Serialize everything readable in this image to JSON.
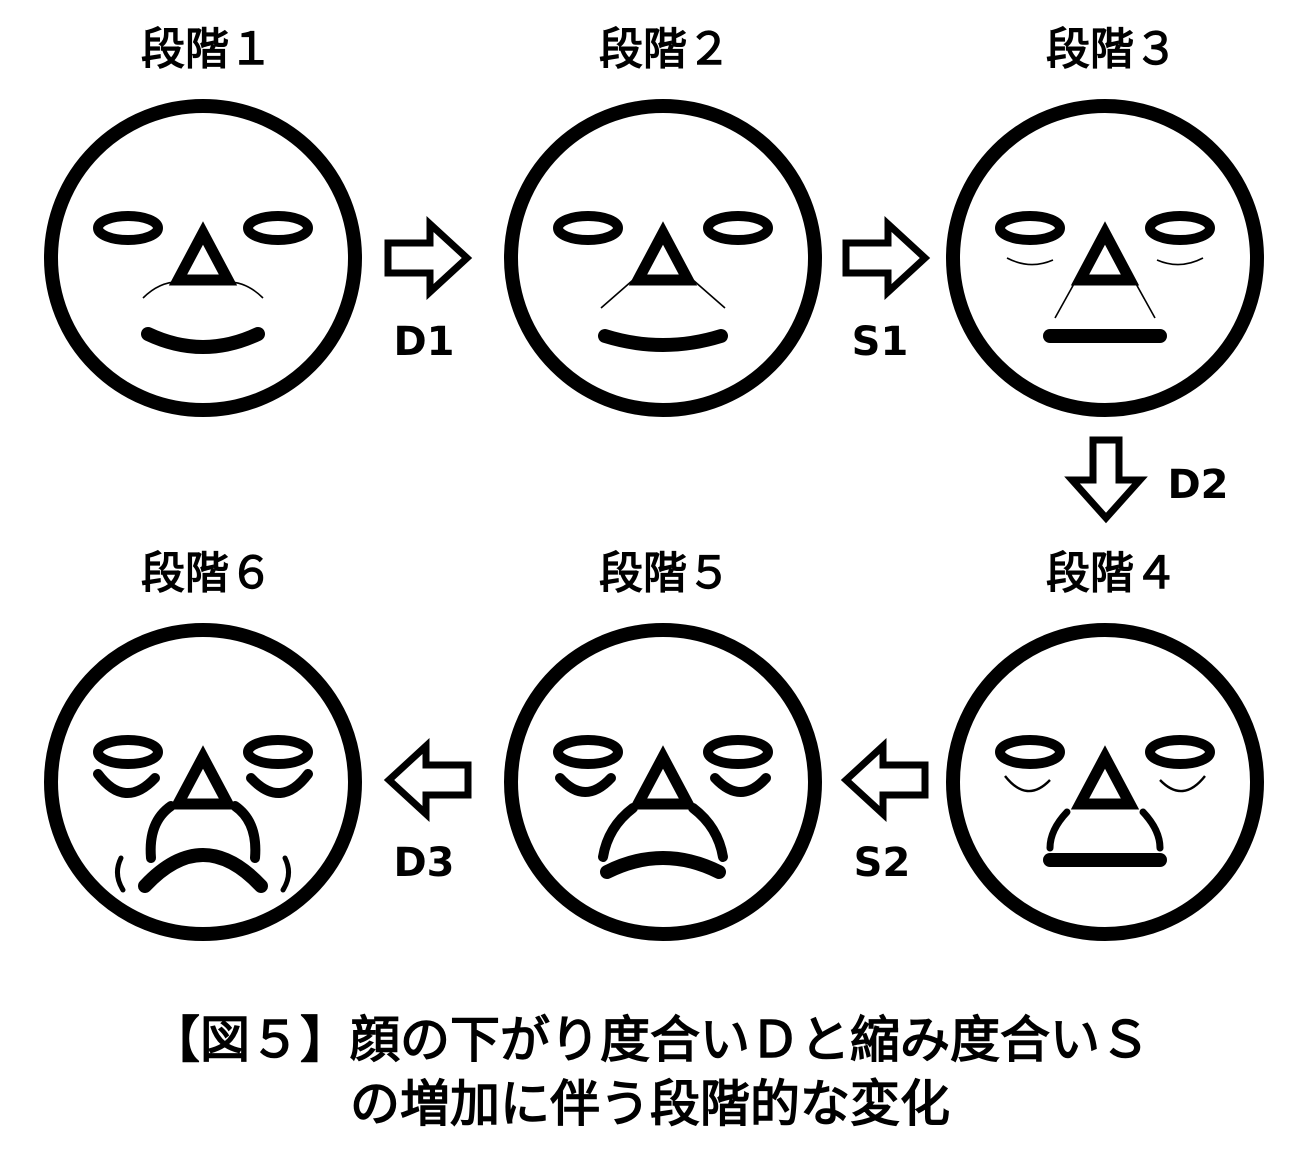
{
  "stages": [
    {
      "label": "段階１"
    },
    {
      "label": "段階２"
    },
    {
      "label": "段階３"
    },
    {
      "label": "段階４"
    },
    {
      "label": "段階５"
    },
    {
      "label": "段階６"
    }
  ],
  "arrows": [
    {
      "label": "D1",
      "from": "段階１",
      "to": "段階２"
    },
    {
      "label": "S1",
      "from": "段階２",
      "to": "段階３"
    },
    {
      "label": "D2",
      "from": "段階３",
      "to": "段階４"
    },
    {
      "label": "S2",
      "from": "段階４",
      "to": "段階５"
    },
    {
      "label": "D3",
      "from": "段階５",
      "to": "段階６"
    }
  ],
  "caption": {
    "line1": "【図５】顔の下がり度合いＤと縮み度合いＳ",
    "line2": "の増加に伴う段階的な変化"
  }
}
